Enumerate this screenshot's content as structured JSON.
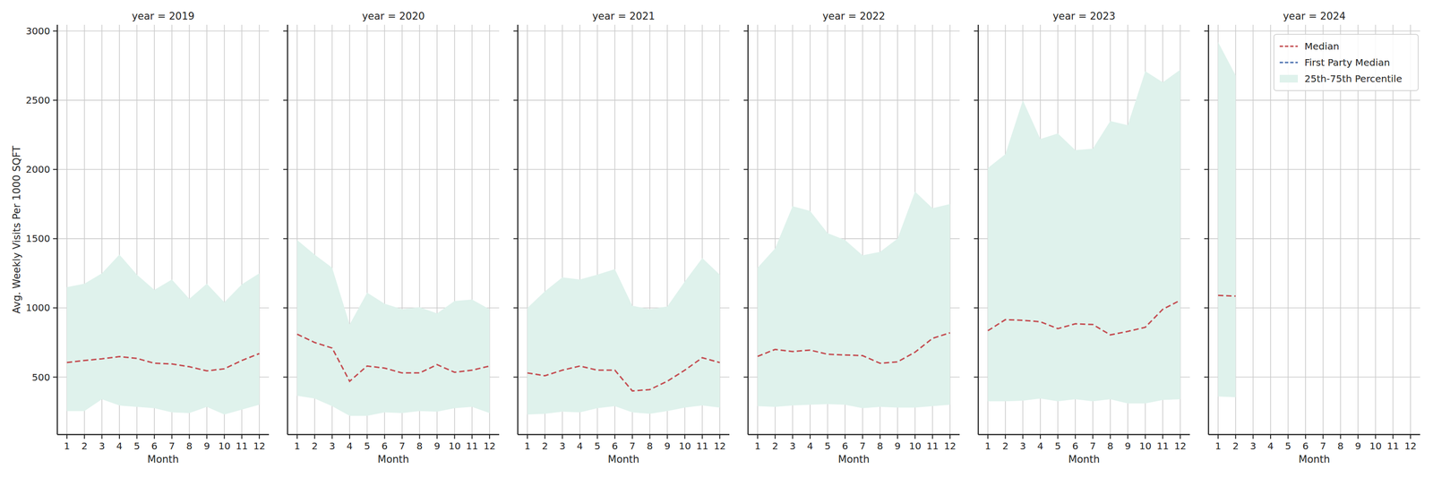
{
  "chart_data": [
    {
      "type": "line",
      "title": "year = 2019",
      "x_label": "Month",
      "y_label": "Avg. Weekly Visits Per 1000 SQFT",
      "x": [
        1,
        2,
        3,
        4,
        5,
        6,
        7,
        8,
        9,
        10,
        11,
        12
      ],
      "xlim": [
        0.45,
        12.55
      ],
      "xticks": [
        1,
        2,
        3,
        4,
        5,
        6,
        7,
        8,
        9,
        10,
        11,
        12
      ],
      "ylim": [
        85,
        3045
      ],
      "yticks": [
        500,
        1000,
        1500,
        2000,
        2500,
        3000
      ],
      "grid": true,
      "series": [
        {
          "type": "line",
          "color": "#c44e52",
          "line_style": "dashed",
          "values": [
            605,
            620,
            632,
            648,
            635,
            600,
            595,
            575,
            545,
            560,
            620,
            670
          ]
        },
        {
          "type": "band",
          "color": "#dff2ec",
          "upper": [
            1150,
            1175,
            1250,
            1385,
            1240,
            1130,
            1205,
            1065,
            1175,
            1040,
            1170,
            1250
          ],
          "lower": [
            255,
            255,
            340,
            295,
            285,
            275,
            245,
            240,
            285,
            230,
            265,
            300
          ]
        }
      ]
    },
    {
      "type": "line",
      "title": "year = 2020",
      "x_label": "Month",
      "tick_labels": "x",
      "x": [
        1,
        2,
        3,
        4,
        5,
        6,
        7,
        8,
        9,
        10,
        11,
        12
      ],
      "xlim": [
        0.45,
        12.55
      ],
      "xticks": [
        1,
        2,
        3,
        4,
        5,
        6,
        7,
        8,
        9,
        10,
        11,
        12
      ],
      "ylim": [
        85,
        3045
      ],
      "yticks": [
        500,
        1000,
        1500,
        2000,
        2500,
        3000
      ],
      "grid": true,
      "series": [
        {
          "type": "line",
          "color": "#c44e52",
          "line_style": "dashed",
          "values": [
            810,
            750,
            710,
            470,
            580,
            565,
            530,
            530,
            590,
            535,
            550,
            580
          ]
        },
        {
          "type": "band",
          "color": "#dff2ec",
          "upper": [
            1490,
            1385,
            1290,
            880,
            1110,
            1030,
            990,
            1005,
            960,
            1050,
            1060,
            990
          ],
          "lower": [
            365,
            345,
            290,
            220,
            220,
            245,
            240,
            255,
            250,
            275,
            285,
            240
          ]
        }
      ]
    },
    {
      "type": "line",
      "title": "year = 2021",
      "x_label": "Month",
      "tick_labels": "x",
      "x": [
        1,
        2,
        3,
        4,
        5,
        6,
        7,
        8,
        9,
        10,
        11,
        12
      ],
      "xlim": [
        0.45,
        12.55
      ],
      "xticks": [
        1,
        2,
        3,
        4,
        5,
        6,
        7,
        8,
        9,
        10,
        11,
        12
      ],
      "ylim": [
        85,
        3045
      ],
      "yticks": [
        500,
        1000,
        1500,
        2000,
        2500,
        3000
      ],
      "grid": true,
      "series": [
        {
          "type": "line",
          "color": "#c44e52",
          "line_style": "dashed",
          "values": [
            530,
            510,
            550,
            580,
            550,
            550,
            400,
            410,
            470,
            550,
            640,
            605
          ]
        },
        {
          "type": "band",
          "color": "#dff2ec",
          "upper": [
            1000,
            1120,
            1220,
            1205,
            1240,
            1280,
            1015,
            990,
            1010,
            1190,
            1360,
            1240
          ],
          "lower": [
            230,
            235,
            250,
            245,
            275,
            290,
            245,
            235,
            255,
            280,
            295,
            280
          ]
        }
      ]
    },
    {
      "type": "line",
      "title": "year = 2022",
      "x_label": "Month",
      "tick_labels": "x",
      "x": [
        1,
        2,
        3,
        4,
        5,
        6,
        7,
        8,
        9,
        10,
        11,
        12
      ],
      "xlim": [
        0.45,
        12.55
      ],
      "xticks": [
        1,
        2,
        3,
        4,
        5,
        6,
        7,
        8,
        9,
        10,
        11,
        12
      ],
      "ylim": [
        85,
        3045
      ],
      "yticks": [
        500,
        1000,
        1500,
        2000,
        2500,
        3000
      ],
      "grid": true,
      "series": [
        {
          "type": "line",
          "color": "#c44e52",
          "line_style": "dashed",
          "values": [
            650,
            700,
            685,
            695,
            665,
            660,
            655,
            600,
            610,
            680,
            780,
            820
          ]
        },
        {
          "type": "band",
          "color": "#dff2ec",
          "upper": [
            1290,
            1430,
            1735,
            1700,
            1540,
            1490,
            1380,
            1405,
            1500,
            1840,
            1720,
            1750
          ],
          "lower": [
            290,
            285,
            295,
            300,
            305,
            300,
            275,
            285,
            280,
            280,
            290,
            300
          ]
        }
      ]
    },
    {
      "type": "line",
      "title": "year = 2023",
      "x_label": "Month",
      "tick_labels": "x",
      "x": [
        1,
        2,
        3,
        4,
        5,
        6,
        7,
        8,
        9,
        10,
        11,
        12
      ],
      "xlim": [
        0.45,
        12.55
      ],
      "xticks": [
        1,
        2,
        3,
        4,
        5,
        6,
        7,
        8,
        9,
        10,
        11,
        12
      ],
      "ylim": [
        85,
        3045
      ],
      "yticks": [
        500,
        1000,
        1500,
        2000,
        2500,
        3000
      ],
      "grid": true,
      "series": [
        {
          "type": "line",
          "color": "#c44e52",
          "line_style": "dashed",
          "values": [
            835,
            915,
            910,
            900,
            850,
            885,
            880,
            805,
            830,
            860,
            990,
            1055
          ]
        },
        {
          "type": "band",
          "color": "#dff2ec",
          "upper": [
            2010,
            2110,
            2500,
            2220,
            2260,
            2140,
            2150,
            2350,
            2320,
            2710,
            2630,
            2720
          ],
          "lower": [
            325,
            325,
            330,
            345,
            325,
            340,
            325,
            340,
            310,
            310,
            335,
            340
          ]
        }
      ]
    },
    {
      "type": "line",
      "title": "year = 2024",
      "x_label": "Month",
      "tick_labels": "x",
      "legend": "upper right",
      "x": [
        1,
        2,
        3,
        4,
        5,
        6,
        7,
        8,
        9,
        10,
        11,
        12
      ],
      "xlim": [
        0.45,
        12.55
      ],
      "xticks": [
        1,
        2,
        3,
        4,
        5,
        6,
        7,
        8,
        9,
        10,
        11,
        12
      ],
      "ylim": [
        85,
        3045
      ],
      "yticks": [
        500,
        1000,
        1500,
        2000,
        2500,
        3000
      ],
      "grid": true,
      "series": [
        {
          "name": "Median",
          "type": "line",
          "color": "#c44e52",
          "line_style": "dashed",
          "values": [
            1090,
            1085,
            null,
            null,
            null,
            null,
            null,
            null,
            null,
            null,
            null,
            null
          ]
        },
        {
          "name": "First Party Median",
          "type": "line",
          "color": "#4c72b0",
          "line_style": "dashed",
          "values": [
            null,
            null,
            null,
            null,
            null,
            null,
            null,
            null,
            null,
            null,
            null,
            null
          ]
        },
        {
          "name": "25th-75th Percentile",
          "type": "band",
          "color": "#dff2ec",
          "upper": [
            2920,
            2680,
            null,
            null,
            null,
            null,
            null,
            null,
            null,
            null,
            null,
            null
          ],
          "lower": [
            360,
            355,
            null,
            null,
            null,
            null,
            null,
            null,
            null,
            null,
            null,
            null
          ]
        }
      ]
    }
  ]
}
